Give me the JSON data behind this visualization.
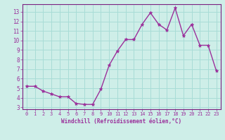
{
  "x": [
    0,
    1,
    2,
    3,
    4,
    5,
    6,
    7,
    8,
    9,
    10,
    11,
    12,
    13,
    14,
    15,
    16,
    17,
    18,
    19,
    20,
    21,
    22,
    23
  ],
  "y": [
    5.2,
    5.2,
    4.7,
    4.4,
    4.1,
    4.1,
    3.4,
    3.3,
    3.3,
    4.9,
    7.4,
    8.9,
    10.1,
    10.1,
    11.7,
    12.9,
    11.7,
    11.1,
    13.4,
    10.5,
    11.7,
    9.5,
    9.5,
    6.8
  ],
  "line_color": "#9B309B",
  "marker": "*",
  "marker_size": 3.5,
  "background_color": "#ceeee8",
  "grid_color": "#a8dcd6",
  "xlabel": "Windchill (Refroidissement éolien,°C)",
  "xlim": [
    -0.5,
    23.5
  ],
  "ylim": [
    2.8,
    13.8
  ],
  "yticks": [
    3,
    4,
    5,
    6,
    7,
    8,
    9,
    10,
    11,
    12,
    13
  ],
  "xticks": [
    0,
    1,
    2,
    3,
    4,
    5,
    6,
    7,
    8,
    9,
    10,
    11,
    12,
    13,
    14,
    15,
    16,
    17,
    18,
    19,
    20,
    21,
    22,
    23
  ],
  "tick_color": "#9B309B",
  "label_color": "#9B309B",
  "axis_color": "#9B309B",
  "line_width": 1.0,
  "spine_color": "#7B2080"
}
